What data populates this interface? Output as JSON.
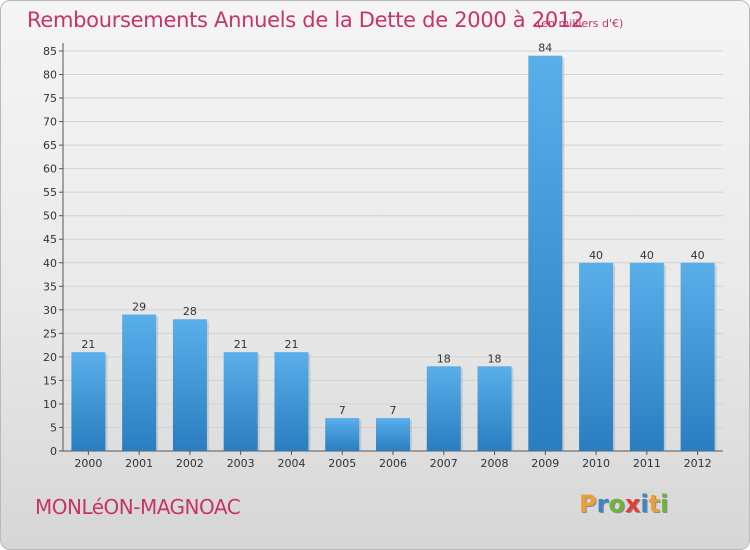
{
  "header": {
    "title": "Remboursements Annuels de la Dette de 2000 à 2012",
    "subtitle": "(en milliers d'€)"
  },
  "footer": {
    "commune": "MONLéON-MAGNOAC",
    "logo": {
      "letters": [
        "P",
        "r",
        "o",
        "x",
        "i",
        "t",
        "i"
      ],
      "colors": [
        "#e8a13a",
        "#3d86c6",
        "#6cb33f",
        "#e23b3b",
        "#3d86c6",
        "#e8a13a",
        "#6cb33f"
      ]
    }
  },
  "colors": {
    "bar_light": "#5aaeea",
    "bar_dark": "#2a7ec0",
    "title": "#c8336a"
  },
  "chart_data": {
    "type": "bar",
    "title": "Remboursements Annuels de la Dette de 2000 à 2012",
    "subtitle": "(en milliers d'€)",
    "categories": [
      "2000",
      "2001",
      "2002",
      "2003",
      "2004",
      "2005",
      "2006",
      "2007",
      "2008",
      "2009",
      "2010",
      "2011",
      "2012"
    ],
    "values": [
      21,
      29,
      28,
      21,
      21,
      7,
      7,
      18,
      18,
      84,
      40,
      40,
      40
    ],
    "data_labels": [
      "21",
      "29",
      "28",
      "21",
      "21",
      "7",
      "7",
      "18",
      "18",
      "84",
      "40",
      "40",
      "40"
    ],
    "yticks": [
      "0",
      "5",
      "10",
      "15",
      "20",
      "25",
      "30",
      "35",
      "40",
      "45",
      "50",
      "55",
      "60",
      "65",
      "70",
      "75",
      "80",
      "85"
    ],
    "ylim": [
      0,
      85
    ],
    "xlabel": "",
    "ylabel": "",
    "grid": true
  }
}
